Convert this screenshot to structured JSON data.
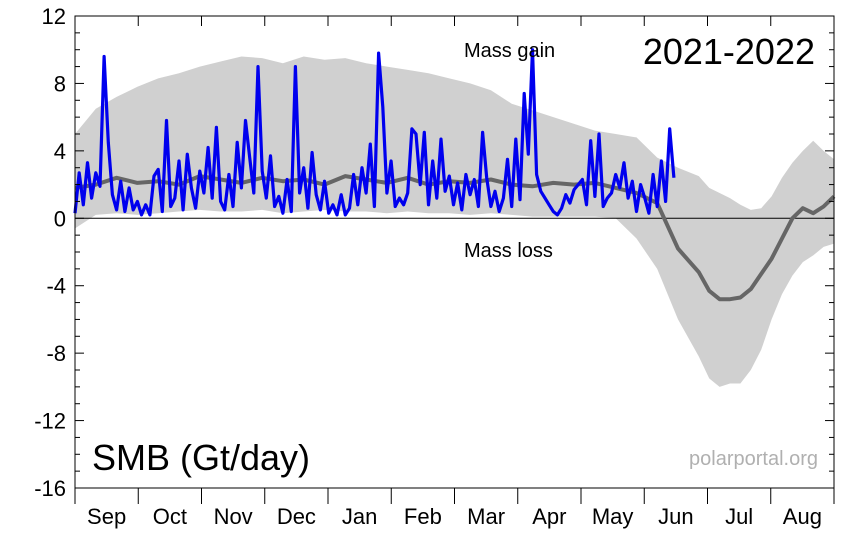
{
  "chart_data": {
    "type": "line",
    "title": "SMB (Gt/day)",
    "season": "2021-2022",
    "source": "polarportal.org",
    "annotations": {
      "gain": "Mass gain",
      "loss": "Mass loss"
    },
    "ylim": [
      -16,
      12
    ],
    "yticks": [
      12,
      8,
      4,
      0,
      -4,
      -8,
      -12,
      -16
    ],
    "ytick_labels": [
      "12",
      "8",
      "4",
      "0",
      "-4",
      "-8",
      "-12",
      "-16"
    ],
    "months": [
      "Sep",
      "Oct",
      "Nov",
      "Dec",
      "Jan",
      "Feb",
      "Mar",
      "Apr",
      "May",
      "Jun",
      "Jul",
      "Aug"
    ],
    "x_range_days": [
      0,
      365
    ],
    "colors": {
      "current": "#0000ee",
      "mean": "#666666",
      "band": "#d0d0d0"
    },
    "series": [
      {
        "role": "current",
        "x": [
          0,
          2,
          4,
          6,
          8,
          10,
          12,
          14,
          16,
          18,
          20,
          22,
          24,
          26,
          28,
          30,
          32,
          34,
          36,
          38,
          40,
          42,
          44,
          46,
          48,
          50,
          52,
          54,
          56,
          58,
          60,
          62,
          64,
          66,
          68,
          70,
          72,
          74,
          76,
          78,
          80,
          82,
          84,
          86,
          88,
          90,
          92,
          94,
          96,
          98,
          100,
          102,
          104,
          106,
          108,
          110,
          112,
          114,
          116,
          118,
          120,
          122,
          124,
          126,
          128,
          130,
          132,
          134,
          136,
          138,
          140,
          142,
          144,
          146,
          148,
          150,
          152,
          154,
          156,
          158,
          160,
          162,
          164,
          166,
          168,
          170,
          172,
          174,
          176,
          178,
          180,
          182,
          184,
          186,
          188,
          190,
          192,
          194,
          196,
          198,
          200,
          202,
          204,
          206,
          208,
          210,
          212,
          214,
          216,
          218,
          220,
          222,
          224,
          226,
          228,
          230,
          232,
          234,
          236,
          238,
          240,
          242,
          244,
          246,
          248,
          250,
          252,
          254,
          256,
          258,
          260,
          262,
          264,
          266,
          268,
          270,
          272,
          274,
          276,
          278,
          280,
          282,
          284,
          286,
          288
        ],
        "y": [
          0.3,
          2.7,
          0.8,
          3.3,
          1.2,
          2.7,
          1.9,
          9.6,
          4.5,
          1.4,
          0.5,
          2.2,
          0.4,
          1.8,
          0.5,
          1.0,
          0.2,
          0.8,
          0.2,
          2.5,
          2.9,
          0.4,
          5.8,
          0.7,
          1.2,
          3.4,
          0.5,
          3.8,
          1.8,
          0.6,
          2.8,
          1.5,
          4.2,
          1.2,
          5.4,
          1.0,
          0.5,
          2.6,
          0.7,
          4.5,
          1.8,
          5.8,
          3.6,
          1.5,
          9.0,
          2.8,
          1.2,
          3.7,
          0.7,
          1.3,
          0.3,
          2.3,
          0.4,
          9.0,
          1.5,
          3.0,
          0.6,
          3.9,
          1.4,
          0.5,
          2.2,
          0.3,
          0.8,
          0.2,
          1.4,
          0.2,
          0.6,
          2.6,
          0.8,
          3.0,
          1.5,
          4.4,
          0.7,
          9.8,
          6.6,
          1.5,
          3.4,
          0.7,
          1.2,
          0.8,
          1.5,
          5.3,
          5.0,
          2.0,
          5.1,
          0.8,
          3.4,
          1.2,
          4.7,
          1.6,
          2.5,
          0.8,
          2.1,
          0.5,
          2.6,
          1.4,
          2.3,
          0.7,
          5.1,
          2.4,
          0.7,
          1.6,
          0.4,
          1.2,
          3.5,
          0.7,
          4.7,
          1.1,
          7.4,
          3.8,
          10.0,
          2.6,
          1.6,
          1.2,
          0.8,
          0.4,
          0.2,
          0.6,
          1.4,
          0.9,
          1.7,
          2.0,
          2.3,
          0.8,
          4.6,
          1.3,
          5.0,
          0.7,
          1.2,
          1.5,
          2.6,
          1.8,
          3.3,
          1.2,
          2.2,
          0.4,
          2.0,
          1.2,
          0.3,
          2.6,
          0.7,
          3.4,
          1.0,
          5.3,
          2.4
        ]
      },
      {
        "role": "mean",
        "x": [
          0,
          10,
          20,
          30,
          40,
          50,
          60,
          70,
          80,
          90,
          100,
          110,
          120,
          130,
          140,
          150,
          160,
          170,
          180,
          190,
          200,
          210,
          220,
          230,
          240,
          250,
          260,
          270,
          280,
          290,
          300,
          305,
          310,
          315,
          320,
          325,
          330,
          335,
          340,
          345,
          350,
          355,
          360,
          365
        ],
        "y": [
          1.8,
          2.0,
          2.4,
          2.1,
          2.2,
          2.0,
          2.5,
          2.3,
          2.1,
          2.4,
          2.2,
          2.3,
          2.0,
          2.5,
          2.3,
          2.1,
          2.4,
          2.0,
          2.2,
          2.1,
          2.3,
          2.0,
          1.9,
          2.1,
          2.0,
          2.1,
          1.8,
          1.5,
          0.9,
          -1.8,
          -3.2,
          -4.3,
          -4.8,
          -4.8,
          -4.7,
          -4.2,
          -3.3,
          -2.4,
          -1.2,
          0.0,
          0.6,
          0.3,
          0.7,
          1.3
        ]
      },
      {
        "role": "range",
        "x": [
          0,
          10,
          20,
          30,
          40,
          50,
          60,
          70,
          80,
          90,
          100,
          110,
          120,
          130,
          140,
          150,
          160,
          170,
          180,
          190,
          200,
          210,
          220,
          230,
          240,
          250,
          260,
          270,
          280,
          290,
          300,
          305,
          310,
          315,
          320,
          325,
          330,
          335,
          340,
          345,
          350,
          355,
          360,
          365
        ],
        "upper": [
          5.0,
          6.5,
          7.2,
          7.8,
          8.3,
          8.6,
          9.0,
          9.3,
          9.6,
          9.5,
          9.2,
          9.6,
          9.4,
          9.5,
          9.2,
          9.0,
          8.8,
          8.6,
          8.3,
          8.0,
          7.6,
          6.8,
          6.4,
          6.0,
          5.6,
          5.2,
          5.0,
          4.8,
          3.6,
          3.0,
          2.5,
          1.8,
          1.5,
          1.2,
          0.8,
          0.5,
          0.6,
          1.3,
          2.4,
          3.3,
          4.0,
          4.6,
          4.0,
          3.5
        ],
        "lower": [
          -0.6,
          0.2,
          0.3,
          0.2,
          0.3,
          0.4,
          0.5,
          0.4,
          0.4,
          0.5,
          0.3,
          0.4,
          0.5,
          0.4,
          0.4,
          0.3,
          0.4,
          0.3,
          0.3,
          0.2,
          0.3,
          0.2,
          0.1,
          0.1,
          0.1,
          0.1,
          0.0,
          -1.2,
          -3.0,
          -6.0,
          -8.2,
          -9.5,
          -10.0,
          -9.8,
          -9.8,
          -9.0,
          -7.8,
          -6.0,
          -4.5,
          -3.4,
          -2.6,
          -2.2,
          -1.7,
          -1.5
        ]
      }
    ]
  }
}
